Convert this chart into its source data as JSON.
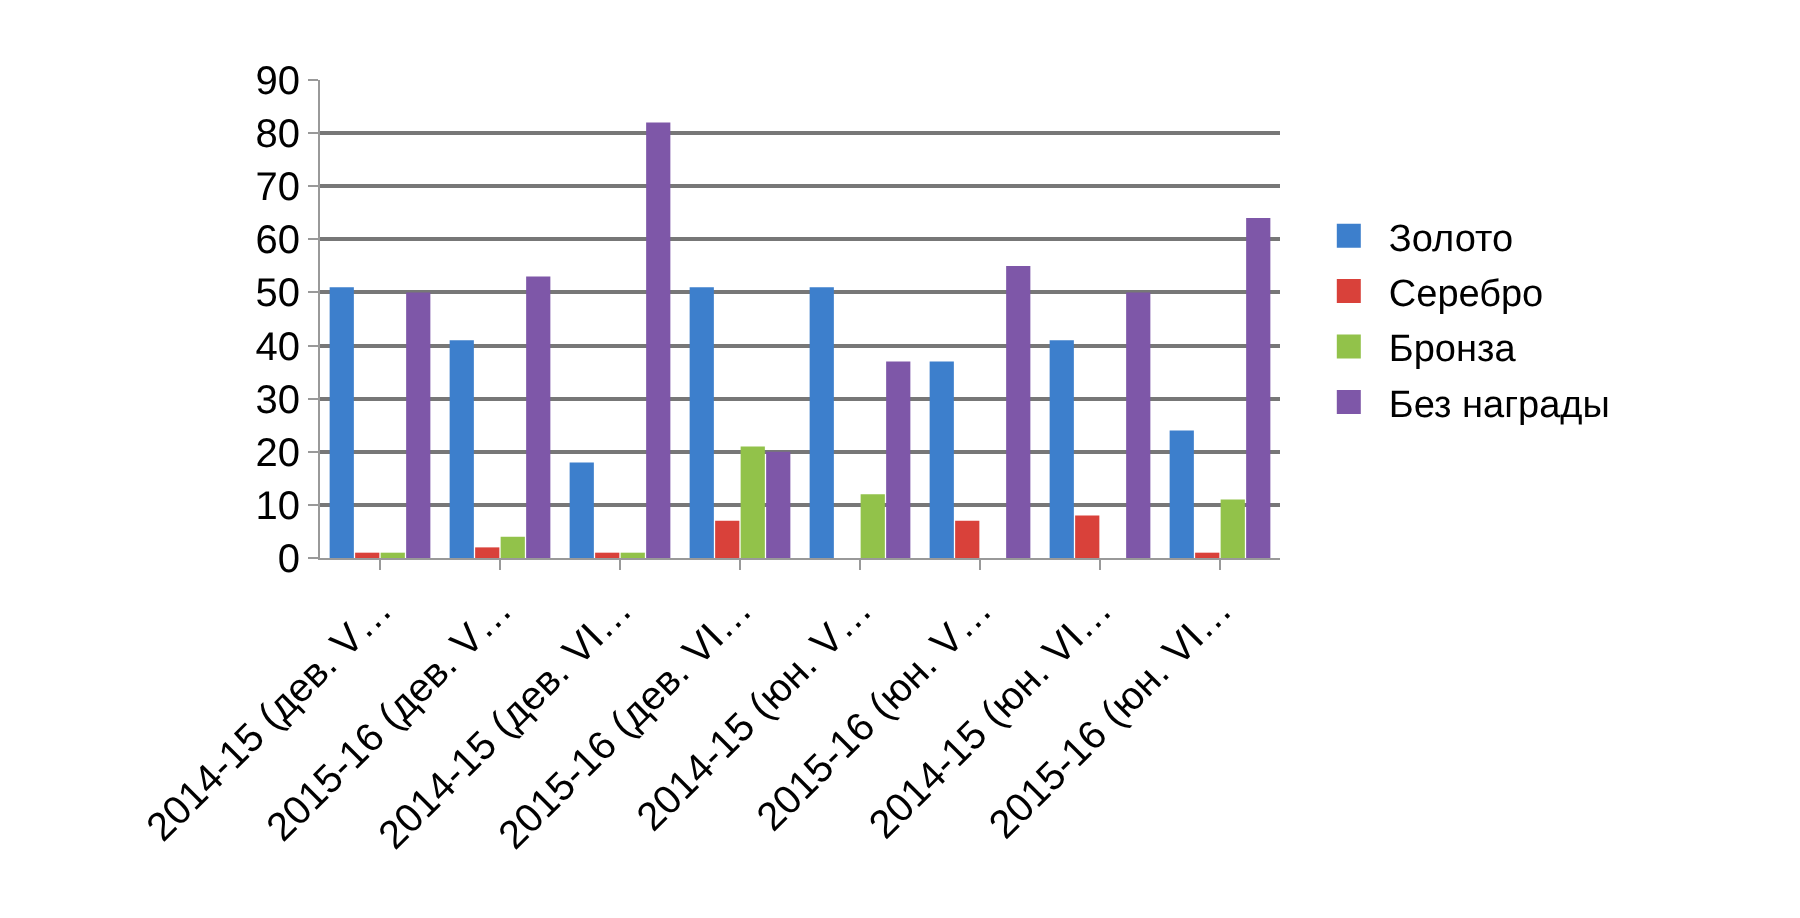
{
  "chart_data": {
    "type": "bar",
    "categories": [
      "2014-15 (дев. V…",
      "2015-16 (дев. V…",
      "2014-15 (дев. VI…",
      "2015-16 (дев. VI…",
      "2014-15 (юн. V…",
      "2015-16 (юн. V…",
      "2014-15 (юн. VI…",
      "2015-16 (юн. VI…"
    ],
    "series": [
      {
        "name": "Золото",
        "color": "#3d7fcc",
        "values": [
          51,
          41,
          18,
          51,
          51,
          37,
          41,
          24
        ]
      },
      {
        "name": "Серебро",
        "color": "#d9413a",
        "values": [
          1,
          2,
          1,
          7,
          0,
          7,
          8,
          1
        ]
      },
      {
        "name": "Бронза",
        "color": "#92c24a",
        "values": [
          1,
          4,
          1,
          21,
          12,
          0,
          0,
          11
        ]
      },
      {
        "name": "Без награды",
        "color": "#7e57a8",
        "values": [
          50,
          53,
          82,
          20,
          37,
          55,
          50,
          64
        ]
      }
    ],
    "ylim": [
      0,
      90
    ],
    "yticks": [
      0,
      10,
      20,
      30,
      40,
      50,
      60,
      70,
      80,
      90
    ],
    "grid": "y",
    "legend": "right"
  }
}
